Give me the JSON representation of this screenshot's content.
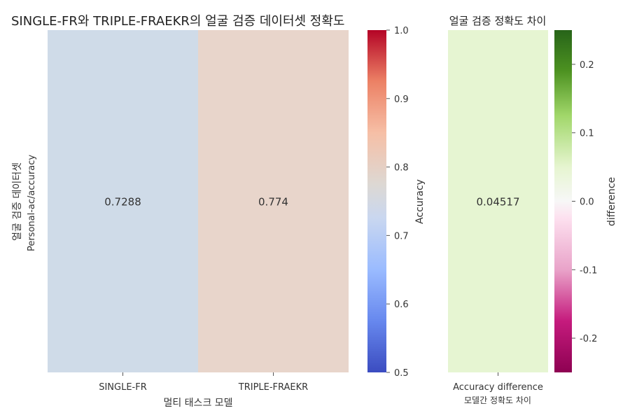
{
  "chart_data": [
    {
      "type": "heatmap",
      "title": "SINGLE-FR와 TRIPLE-FRAEKR의 얼굴 검증 데이터셋 정확도",
      "xlabel": "멀티 태스크 모델",
      "ylabel": [
        "얼굴 검증 데이터셋",
        "Personal-ac/accuracy"
      ],
      "categories": [
        "SINGLE-FR",
        "TRIPLE-FRAEKR"
      ],
      "values": [
        0.7288,
        0.774
      ],
      "value_labels": [
        "0.7288",
        "0.774"
      ],
      "colorbar": {
        "label": "Accuracy",
        "colormap": "coolwarm",
        "range": [
          0.5,
          1.0
        ],
        "ticks": [
          "0.5",
          "0.6",
          "0.7",
          "0.8",
          "0.9",
          "1.0"
        ],
        "tick_values": [
          0.5,
          0.6,
          0.7,
          0.8,
          0.9,
          1.0
        ]
      },
      "cell_colors": [
        "#cfdbe8",
        "#e8d5cb"
      ]
    },
    {
      "type": "heatmap",
      "title": "얼굴 검증 정확도 차이",
      "xlabel": "모델간 정확도 차이",
      "categories": [
        "Accuracy difference"
      ],
      "values": [
        0.04517
      ],
      "value_labels": [
        "0.04517"
      ],
      "colorbar": {
        "label": "difference",
        "colormap": "PiYG",
        "range": [
          -0.25,
          0.25
        ],
        "ticks": [
          "-0.2",
          "-0.1",
          "0.0",
          "0.1",
          "0.2"
        ],
        "tick_values": [
          -0.2,
          -0.1,
          0.0,
          0.1,
          0.2
        ]
      },
      "cell_colors": [
        "#e6f5d2"
      ]
    }
  ]
}
